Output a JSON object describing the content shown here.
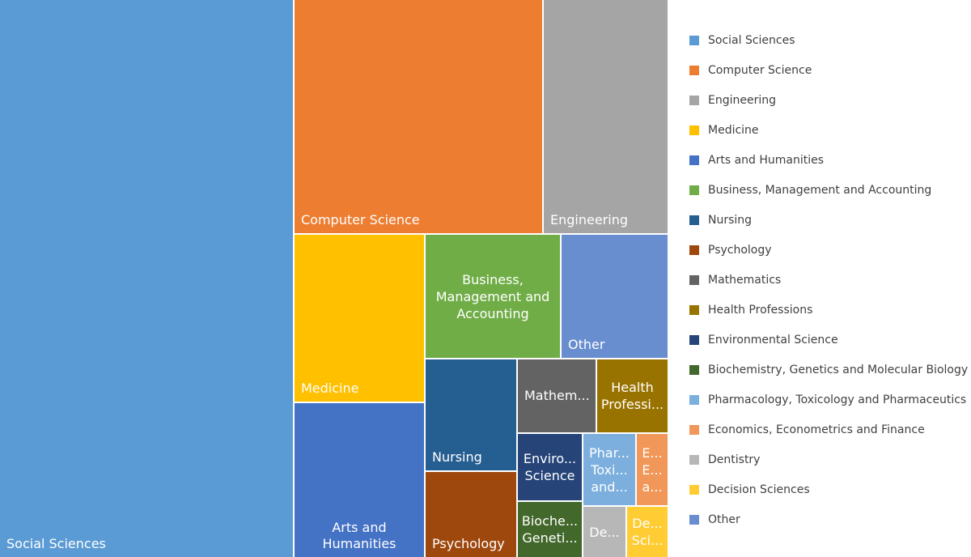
{
  "chart_data": {
    "type": "treemap",
    "legend_position": "right",
    "tiles": [
      {
        "name": "Social Sciences",
        "label": "Social Sciences",
        "value": 249,
        "color": "#5B9BD5",
        "label_style": "bl"
      },
      {
        "name": "Computer Science",
        "label": "Computer Science",
        "value": 88,
        "color": "#ED7D31",
        "label_style": "bl"
      },
      {
        "name": "Engineering",
        "label": "Engineering",
        "value": 44,
        "color": "#A5A5A5",
        "label_style": "bl"
      },
      {
        "name": "Medicine",
        "label": "Medicine",
        "value": 25,
        "color": "#FFC000",
        "label_style": "bl"
      },
      {
        "name": "Arts and Humanities",
        "label": "Arts and\nHumanities",
        "value": 21,
        "color": "#4472C4",
        "label_style": "centerbottom"
      },
      {
        "name": "Business, Management and Accounting",
        "label": "Business,\nManagement and\nAccounting",
        "value": 25,
        "color": "#70AD47",
        "label_style": "center"
      },
      {
        "name": "Other",
        "label": "Other",
        "value": 20,
        "color": "#698ED0",
        "label_style": "bl"
      },
      {
        "name": "Nursing",
        "label": "Nursing",
        "value": 13,
        "color": "#255E91",
        "label_style": "bl"
      },
      {
        "name": "Psychology",
        "label": "Psychology",
        "value": 8.5,
        "color": "#9E480E",
        "label_style": "bl"
      },
      {
        "name": "Mathematics",
        "label": "Mathem...",
        "value": 8,
        "color": "#636363",
        "label_style": "leftmid"
      },
      {
        "name": "Health Professions",
        "label": "Health\nProfessi...",
        "value": 7,
        "color": "#997300",
        "label_style": "center"
      },
      {
        "name": "Environmental Science",
        "label": "Enviro...\nScience",
        "value": 5.5,
        "color": "#264478",
        "label_style": "center"
      },
      {
        "name": "Pharmacology, Toxicology and Pharmaceutics",
        "label": "Phar...\nToxi...\nand...",
        "value": 4.5,
        "color": "#7CAFDD",
        "label_style": "center"
      },
      {
        "name": "Economics, Econometrics and Finance",
        "label": "E...\nE...\na...",
        "value": 2.5,
        "color": "#F1975A",
        "label_style": "center"
      },
      {
        "name": "Biochemistry, Genetics and Molecular Biology",
        "label": "Bioche...\nGeneti...",
        "value": 4,
        "color": "#43682B",
        "label_style": "center"
      },
      {
        "name": "Dentistry",
        "label": "De...",
        "value": 3,
        "color": "#B7B7B7",
        "label_style": "center"
      },
      {
        "name": "Decision Sciences",
        "label": "De...\nSci...",
        "value": 2,
        "color": "#FFCD33",
        "label_style": "center"
      }
    ],
    "legend": [
      {
        "label": "Social Sciences",
        "color": "#5B9BD5"
      },
      {
        "label": "Computer Science",
        "color": "#ED7D31"
      },
      {
        "label": "Engineering",
        "color": "#A5A5A5"
      },
      {
        "label": "Medicine",
        "color": "#FFC000"
      },
      {
        "label": "Arts and Humanities",
        "color": "#4472C4"
      },
      {
        "label": "Business, Management and Accounting",
        "color": "#70AD47"
      },
      {
        "label": "Nursing",
        "color": "#255E91"
      },
      {
        "label": "Psychology",
        "color": "#9E480E"
      },
      {
        "label": "Mathematics",
        "color": "#636363"
      },
      {
        "label": "Health Professions",
        "color": "#997300"
      },
      {
        "label": "Environmental Science",
        "color": "#264478"
      },
      {
        "label": "Biochemistry, Genetics and Molecular Biology",
        "color": "#43682B"
      },
      {
        "label": "Pharmacology, Toxicology and Pharmaceutics",
        "color": "#7CAFDD"
      },
      {
        "label": "Economics, Econometrics and Finance",
        "color": "#F1975A"
      },
      {
        "label": "Dentistry",
        "color": "#B7B7B7"
      },
      {
        "label": "Decision Sciences",
        "color": "#FFCD33"
      },
      {
        "label": "Other",
        "color": "#698ED0"
      }
    ]
  }
}
